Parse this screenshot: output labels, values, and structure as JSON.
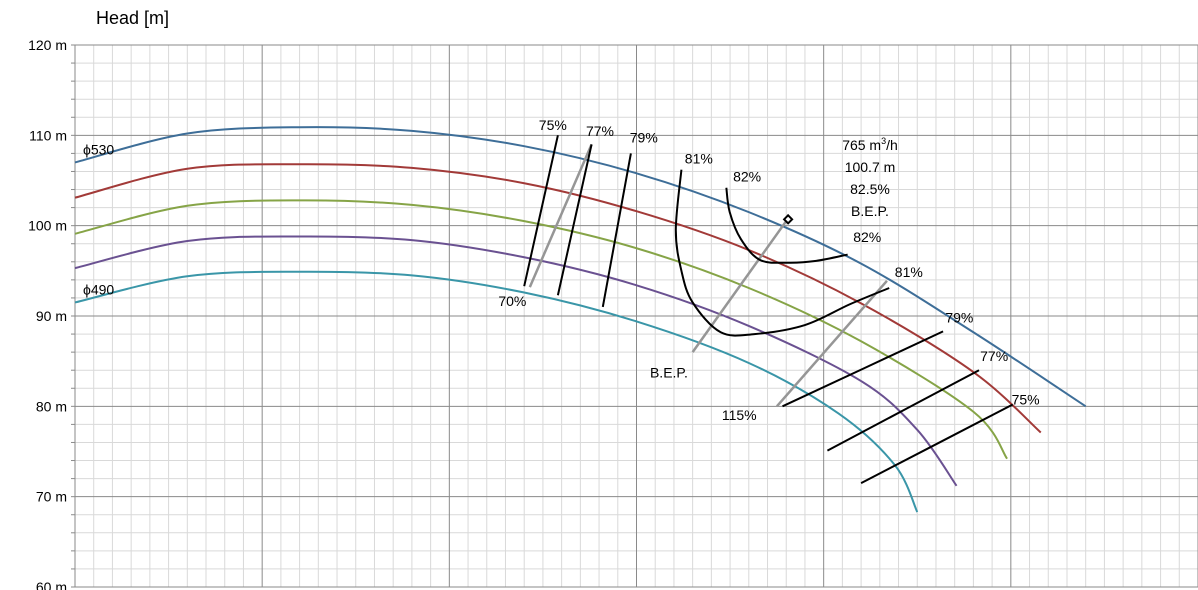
{
  "chart_data": {
    "type": "line",
    "ylabel": "Head [m]",
    "xlabel": "",
    "ylim": [
      60,
      120
    ],
    "y_ticks": [
      "60 m",
      "70 m",
      "80 m",
      "90 m",
      "100 m",
      "110 m",
      "120 m"
    ],
    "x_ticks": [],
    "grid": true,
    "colors": {
      "curve1": "#3E6E98",
      "curve2": "#A23A38",
      "curve3": "#86A447",
      "curve4": "#6A5191",
      "curve5": "#3A96A8",
      "iso": "#000000",
      "bep": "#969696",
      "grid_major": "#8a8a8a",
      "grid_minor": "#d9d9d9"
    },
    "impeller_curves": [
      {
        "name": "ϕ530",
        "color_key": "curve1",
        "points": [
          [
            0,
            107.0
          ],
          [
            100,
            110.2
          ],
          [
            200,
            110.9
          ],
          [
            300,
            110.5
          ],
          [
            400,
            108.8
          ],
          [
            500,
            105.8
          ],
          [
            600,
            101.5
          ],
          [
            700,
            95.8
          ],
          [
            800,
            88.2
          ],
          [
            900,
            80.0
          ]
        ]
      },
      {
        "name": "",
        "color_key": "curve2",
        "points": [
          [
            0,
            103.1
          ],
          [
            100,
            106.3
          ],
          [
            200,
            106.8
          ],
          [
            300,
            106.4
          ],
          [
            400,
            104.7
          ],
          [
            500,
            101.6
          ],
          [
            600,
            97.3
          ],
          [
            700,
            91.4
          ],
          [
            800,
            83.8
          ],
          [
            860,
            77.1
          ]
        ]
      },
      {
        "name": "",
        "color_key": "curve3",
        "points": [
          [
            0,
            99.1
          ],
          [
            100,
            102.2
          ],
          [
            200,
            102.8
          ],
          [
            300,
            102.3
          ],
          [
            400,
            100.5
          ],
          [
            500,
            97.5
          ],
          [
            600,
            93.1
          ],
          [
            700,
            87.2
          ],
          [
            800,
            79.4
          ],
          [
            830,
            74.2
          ]
        ]
      },
      {
        "name": "",
        "color_key": "curve4",
        "points": [
          [
            0,
            95.3
          ],
          [
            100,
            98.3
          ],
          [
            200,
            98.8
          ],
          [
            300,
            98.4
          ],
          [
            400,
            96.5
          ],
          [
            500,
            93.4
          ],
          [
            600,
            88.9
          ],
          [
            700,
            82.8
          ],
          [
            750,
            77.4
          ],
          [
            785,
            71.2
          ]
        ]
      },
      {
        "name": "ϕ490",
        "color_key": "curve5",
        "points": [
          [
            0,
            91.5
          ],
          [
            100,
            94.4
          ],
          [
            200,
            94.9
          ],
          [
            300,
            94.5
          ],
          [
            400,
            92.6
          ],
          [
            500,
            89.4
          ],
          [
            600,
            84.8
          ],
          [
            680,
            79.2
          ],
          [
            730,
            73.5
          ],
          [
            750,
            68.3
          ]
        ]
      }
    ],
    "efficiency_lines": [
      {
        "label": "75%",
        "points": [
          [
            400,
            93.3
          ],
          [
            430,
            110.0
          ]
        ]
      },
      {
        "label": "77%",
        "points": [
          [
            430,
            92.3
          ],
          [
            460,
            109.0
          ]
        ]
      },
      {
        "label": "79%",
        "points": [
          [
            470,
            91.0
          ],
          [
            495,
            108.0
          ]
        ]
      },
      {
        "label": "81%",
        "points": [
          [
            540,
            106.2
          ],
          [
            535,
            99.5
          ],
          [
            540,
            95.0
          ],
          [
            550,
            91.5
          ],
          [
            575,
            88.2
          ],
          [
            605,
            88.0
          ],
          [
            650,
            89.0
          ],
          [
            690,
            91.3
          ],
          [
            725,
            93.1
          ]
        ]
      },
      {
        "label": "82%",
        "points": [
          [
            580,
            104.2
          ],
          [
            583,
            101.5
          ],
          [
            593,
            98.5
          ],
          [
            610,
            96.2
          ],
          [
            635,
            95.9
          ],
          [
            660,
            96.1
          ],
          [
            688,
            96.8
          ]
        ]
      },
      {
        "label": "79%",
        "points": [
          [
            630,
            80.0
          ],
          [
            773,
            88.3
          ]
        ]
      },
      {
        "label": "77%",
        "points": [
          [
            670,
            75.1
          ],
          [
            805,
            84.0
          ]
        ]
      },
      {
        "label": "75%",
        "points": [
          [
            700,
            71.5
          ],
          [
            835,
            80.2
          ]
        ]
      }
    ],
    "bep_lines": [
      {
        "label": "B.E.P.",
        "points": [
          [
            550,
            86.0
          ],
          [
            635,
            100.8
          ]
        ]
      },
      {
        "label": "70%",
        "points": [
          [
            405,
            93.2
          ],
          [
            460,
            109.0
          ]
        ]
      },
      {
        "label": "115%",
        "points": [
          [
            625,
            80.0
          ],
          [
            723,
            93.9
          ]
        ]
      }
    ],
    "bep_point": {
      "x": 635,
      "y": 100.7
    },
    "annotations": [
      {
        "text": "75%",
        "x": 413,
        "y": 110.6
      },
      {
        "text": "77%",
        "x": 455,
        "y": 109.9
      },
      {
        "text": "79%",
        "x": 494,
        "y": 109.2
      },
      {
        "text": "81%",
        "x": 543,
        "y": 106.9
      },
      {
        "text": "82%",
        "x": 586,
        "y": 104.9
      },
      {
        "text": "82%",
        "x": 693,
        "y": 98.2
      },
      {
        "text": "81%",
        "x": 730,
        "y": 94.3
      },
      {
        "text": "79%",
        "x": 775,
        "y": 89.3
      },
      {
        "text": "77%",
        "x": 806,
        "y": 85.0
      },
      {
        "text": "75%",
        "x": 834,
        "y": 80.2
      },
      {
        "text": "70%",
        "x": 377,
        "y": 91.1
      },
      {
        "text": "B.E.P.",
        "x": 512,
        "y": 83.2
      },
      {
        "text": "115%",
        "x": 576,
        "y": 78.5
      }
    ],
    "bep_box": {
      "flow_num": "765 m",
      "flow_sup": "3",
      "flow_suffix": "/h",
      "head": "100.7 m",
      "efficiency": "82.5%",
      "label": "B.E.P."
    }
  }
}
